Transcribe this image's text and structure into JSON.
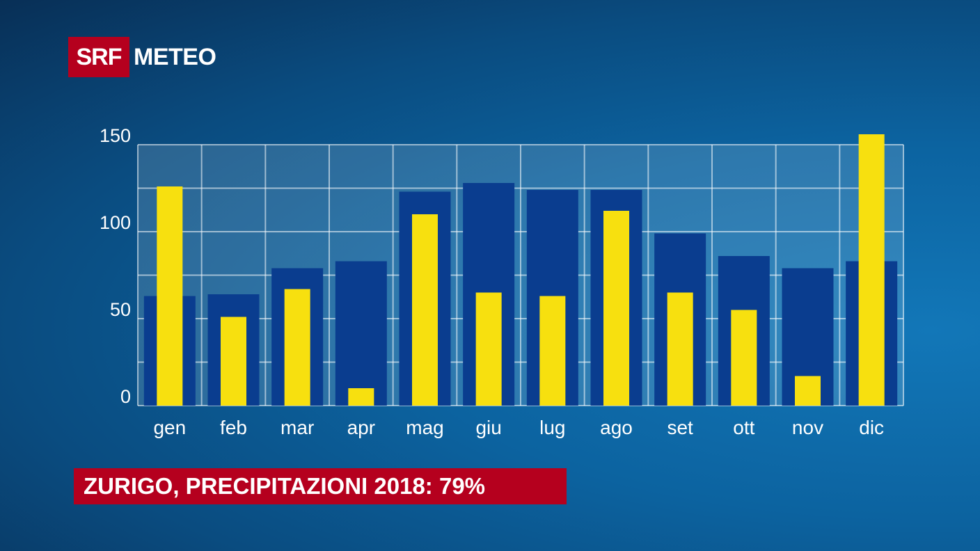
{
  "logo": {
    "brand": "SRF",
    "product": "METEO"
  },
  "title": "ZURIGO, PRECIPITAZIONI 2018: 79%",
  "colors": {
    "norm_bar": "#0a3d8f",
    "actual_bar": "#f7e00f",
    "brand_red": "#b5001e"
  },
  "chart_data": {
    "type": "bar",
    "categories": [
      "gen",
      "feb",
      "mar",
      "apr",
      "mag",
      "giu",
      "lug",
      "ago",
      "set",
      "ott",
      "nov",
      "dic"
    ],
    "series": [
      {
        "values": [
          63,
          64,
          79,
          83,
          123,
          128,
          124,
          124,
          99,
          86,
          79,
          83
        ]
      },
      {
        "values": [
          126,
          51,
          67,
          10,
          110,
          65,
          63,
          112,
          65,
          55,
          17,
          156
        ]
      }
    ],
    "ylim": [
      0,
      150
    ],
    "yticks": [
      0,
      50,
      100,
      150
    ],
    "grid": true
  }
}
